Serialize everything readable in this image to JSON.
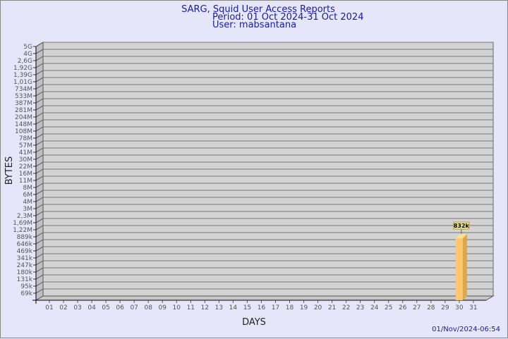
{
  "title": {
    "line1": "SARG, Squid User Access Reports",
    "line2": "Period: 01 Oct 2024-31 Oct 2024",
    "line3": "User: mabsantana"
  },
  "timestamp": "01/Nov/2024-06:54",
  "colors": {
    "background": "#e6e6fa",
    "plot_wall": "#d3d3d3",
    "bar": "#ffc870",
    "title": "#1a1aa0"
  },
  "chart_data": {
    "type": "bar",
    "xlabel": "DAYS",
    "ylabel": "BYTES",
    "y_scale": "log",
    "grid": true,
    "y_ticks": [
      "5G",
      "4G",
      "2,6G",
      "1,92G",
      "1,39G",
      "1,01G",
      "734M",
      "533M",
      "387M",
      "281M",
      "204M",
      "148M",
      "108M",
      "78M",
      "57M",
      "41M",
      "30M",
      "22M",
      "16M",
      "11M",
      "8M",
      "6M",
      "4M",
      "3M",
      "2,3M",
      "1,69M",
      "1,22M",
      "889k",
      "646k",
      "469k",
      "341k",
      "247k",
      "180k",
      "131k",
      "95k",
      "69k"
    ],
    "categories": [
      "01",
      "02",
      "03",
      "04",
      "05",
      "06",
      "07",
      "08",
      "09",
      "10",
      "11",
      "12",
      "13",
      "14",
      "15",
      "16",
      "17",
      "18",
      "19",
      "20",
      "21",
      "22",
      "23",
      "24",
      "25",
      "26",
      "27",
      "28",
      "29",
      "30",
      "31"
    ],
    "bars": [
      {
        "day": "30",
        "value": 832000,
        "label": "832k"
      }
    ]
  }
}
